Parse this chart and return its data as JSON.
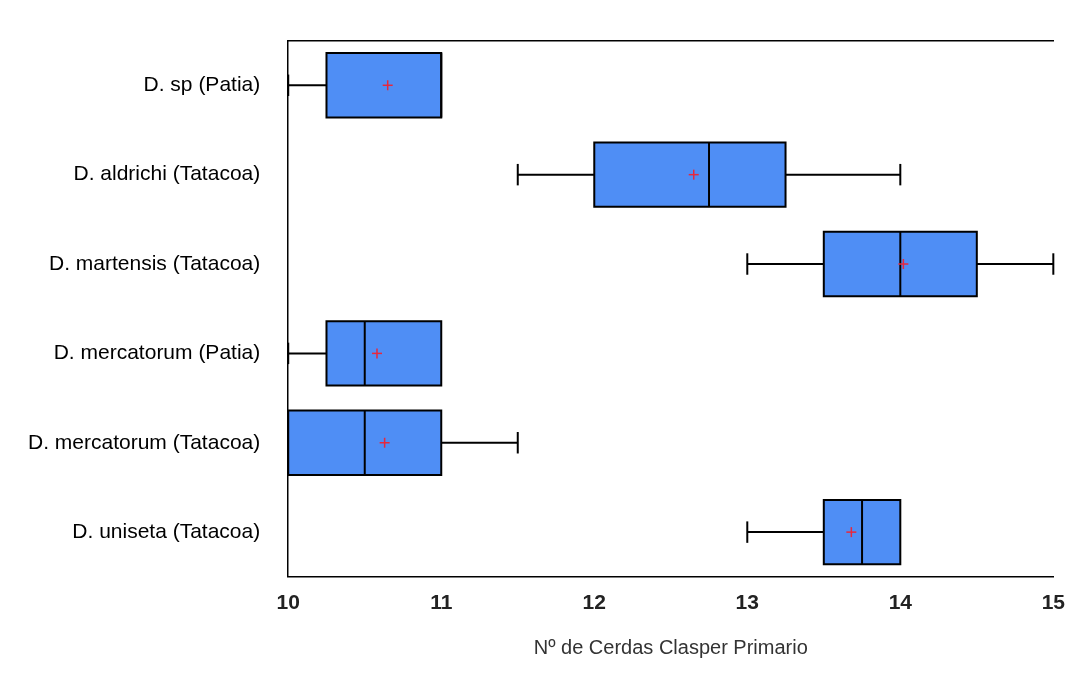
{
  "chart_data": {
    "type": "box",
    "orientation": "horizontal",
    "xlabel": "Nº de Cerdas Clasper Primario",
    "categories": [
      "D. sp (Patia)",
      "D. aldrichi (Tatacoa)",
      "D. martensis (Tatacoa)",
      "D. mercatorum (Patia)",
      "D. mercatorum (Tatacoa)",
      "D. uniseta (Tatacoa)"
    ],
    "color": "#4f8ef5",
    "boxes": [
      {
        "low": 10,
        "q1": 10.25,
        "median": 11,
        "q3": 11,
        "high": 11,
        "mean": 10.65
      },
      {
        "low": 11.5,
        "q1": 12,
        "median": 12.75,
        "q3": 13.25,
        "high": 14,
        "mean": 12.65
      },
      {
        "low": 13,
        "q1": 13.5,
        "median": 14,
        "q3": 14.5,
        "high": 15,
        "mean": 14.02
      },
      {
        "low": 10,
        "q1": 10.25,
        "median": 10.5,
        "q3": 11,
        "high": 11,
        "mean": 10.58
      },
      {
        "low": 10,
        "q1": 10,
        "median": 10.5,
        "q3": 11,
        "high": 11.5,
        "mean": 10.63
      },
      {
        "low": 13,
        "q1": 13.5,
        "median": 13.75,
        "q3": 14,
        "high": 14,
        "mean": 13.68
      }
    ],
    "xlim": [
      10,
      15
    ],
    "xticks": [
      10,
      11,
      12,
      13,
      14,
      15
    ]
  }
}
